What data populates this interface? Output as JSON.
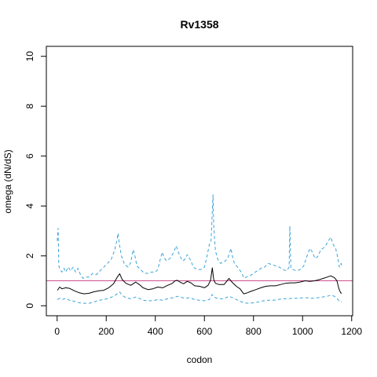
{
  "chart_data": {
    "type": "line",
    "title": "Rv1358",
    "xlabel": "codon",
    "ylabel": "omega (dN/dS)",
    "xlim": [
      -44,
      1204
    ],
    "ylim": [
      -0.4,
      10.4
    ],
    "x_ticks": [
      0,
      200,
      400,
      600,
      800,
      1000,
      1200
    ],
    "y_ticks": [
      0,
      2,
      4,
      6,
      8,
      10
    ],
    "reference_line": {
      "y": 1,
      "color": "#cc4f8f"
    },
    "grid": false,
    "legend": "none",
    "series": [
      {
        "role": "estimate",
        "style": "solid",
        "color": "#000000",
        "points": [
          [
            1,
            0.62
          ],
          [
            10,
            0.75
          ],
          [
            20,
            0.68
          ],
          [
            35,
            0.72
          ],
          [
            50,
            0.7
          ],
          [
            70,
            0.6
          ],
          [
            90,
            0.52
          ],
          [
            110,
            0.48
          ],
          [
            130,
            0.5
          ],
          [
            150,
            0.56
          ],
          [
            170,
            0.6
          ],
          [
            190,
            0.62
          ],
          [
            210,
            0.72
          ],
          [
            230,
            0.88
          ],
          [
            245,
            1.15
          ],
          [
            255,
            1.28
          ],
          [
            265,
            1.05
          ],
          [
            280,
            0.9
          ],
          [
            300,
            0.82
          ],
          [
            320,
            0.95
          ],
          [
            335,
            0.85
          ],
          [
            350,
            0.72
          ],
          [
            370,
            0.65
          ],
          [
            390,
            0.68
          ],
          [
            410,
            0.75
          ],
          [
            430,
            0.72
          ],
          [
            450,
            0.82
          ],
          [
            470,
            0.9
          ],
          [
            480,
            1.0
          ],
          [
            490,
            1.02
          ],
          [
            500,
            0.95
          ],
          [
            515,
            0.88
          ],
          [
            530,
            0.98
          ],
          [
            545,
            0.92
          ],
          [
            560,
            0.8
          ],
          [
            580,
            0.78
          ],
          [
            600,
            0.72
          ],
          [
            615,
            0.82
          ],
          [
            625,
            1.02
          ],
          [
            632,
            1.52
          ],
          [
            638,
            1.05
          ],
          [
            645,
            0.9
          ],
          [
            660,
            0.85
          ],
          [
            680,
            0.85
          ],
          [
            700,
            1.1
          ],
          [
            712,
            0.95
          ],
          [
            730,
            0.78
          ],
          [
            745,
            0.68
          ],
          [
            760,
            0.48
          ],
          [
            775,
            0.52
          ],
          [
            790,
            0.58
          ],
          [
            810,
            0.65
          ],
          [
            830,
            0.72
          ],
          [
            850,
            0.78
          ],
          [
            870,
            0.8
          ],
          [
            890,
            0.8
          ],
          [
            910,
            0.85
          ],
          [
            930,
            0.9
          ],
          [
            950,
            0.92
          ],
          [
            970,
            0.92
          ],
          [
            990,
            0.95
          ],
          [
            1010,
            1.0
          ],
          [
            1030,
            0.98
          ],
          [
            1050,
            1.0
          ],
          [
            1070,
            1.05
          ],
          [
            1085,
            1.1
          ],
          [
            1100,
            1.15
          ],
          [
            1115,
            1.2
          ],
          [
            1130,
            1.12
          ],
          [
            1140,
            1.0
          ],
          [
            1148,
            0.68
          ],
          [
            1155,
            0.52
          ],
          [
            1160,
            0.5
          ]
        ]
      },
      {
        "role": "upper-bound",
        "style": "dashed",
        "color": "#3ba3d8",
        "points": [
          [
            0,
            2.6
          ],
          [
            4,
            3.1
          ],
          [
            7,
            1.6
          ],
          [
            12,
            1.45
          ],
          [
            20,
            1.35
          ],
          [
            28,
            1.5
          ],
          [
            35,
            1.35
          ],
          [
            45,
            1.55
          ],
          [
            55,
            1.4
          ],
          [
            65,
            1.55
          ],
          [
            75,
            1.35
          ],
          [
            85,
            1.5
          ],
          [
            95,
            1.25
          ],
          [
            105,
            1.1
          ],
          [
            115,
            1.15
          ],
          [
            130,
            1.15
          ],
          [
            145,
            1.3
          ],
          [
            160,
            1.25
          ],
          [
            175,
            1.4
          ],
          [
            190,
            1.55
          ],
          [
            205,
            1.7
          ],
          [
            220,
            1.85
          ],
          [
            235,
            2.25
          ],
          [
            243,
            2.6
          ],
          [
            248,
            2.9
          ],
          [
            253,
            2.5
          ],
          [
            262,
            2.0
          ],
          [
            275,
            1.65
          ],
          [
            290,
            1.55
          ],
          [
            300,
            1.75
          ],
          [
            310,
            2.25
          ],
          [
            317,
            2.0
          ],
          [
            325,
            1.6
          ],
          [
            340,
            1.45
          ],
          [
            355,
            1.3
          ],
          [
            370,
            1.3
          ],
          [
            385,
            1.35
          ],
          [
            400,
            1.35
          ],
          [
            410,
            1.45
          ],
          [
            420,
            1.85
          ],
          [
            428,
            2.15
          ],
          [
            435,
            1.95
          ],
          [
            445,
            1.8
          ],
          [
            460,
            1.9
          ],
          [
            475,
            2.15
          ],
          [
            485,
            2.4
          ],
          [
            492,
            2.2
          ],
          [
            500,
            2.0
          ],
          [
            510,
            1.8
          ],
          [
            520,
            1.85
          ],
          [
            530,
            2.05
          ],
          [
            545,
            1.8
          ],
          [
            555,
            1.55
          ],
          [
            570,
            1.45
          ],
          [
            585,
            1.45
          ],
          [
            600,
            1.55
          ],
          [
            612,
            2.05
          ],
          [
            620,
            2.45
          ],
          [
            627,
            2.6
          ],
          [
            632,
            3.8
          ],
          [
            635,
            4.45
          ],
          [
            638,
            3.2
          ],
          [
            645,
            2.2
          ],
          [
            655,
            1.85
          ],
          [
            665,
            1.7
          ],
          [
            680,
            1.75
          ],
          [
            695,
            1.9
          ],
          [
            708,
            2.3
          ],
          [
            714,
            2.0
          ],
          [
            722,
            1.7
          ],
          [
            735,
            1.55
          ],
          [
            750,
            1.35
          ],
          [
            762,
            1.1
          ],
          [
            770,
            1.15
          ],
          [
            785,
            1.2
          ],
          [
            800,
            1.3
          ],
          [
            815,
            1.4
          ],
          [
            830,
            1.5
          ],
          [
            845,
            1.55
          ],
          [
            860,
            1.7
          ],
          [
            875,
            1.65
          ],
          [
            890,
            1.6
          ],
          [
            905,
            1.55
          ],
          [
            920,
            1.45
          ],
          [
            935,
            1.4
          ],
          [
            945,
            1.55
          ],
          [
            948,
            3.2
          ],
          [
            952,
            1.55
          ],
          [
            960,
            1.45
          ],
          [
            975,
            1.4
          ],
          [
            990,
            1.45
          ],
          [
            1005,
            1.6
          ],
          [
            1020,
            2.05
          ],
          [
            1030,
            2.3
          ],
          [
            1040,
            2.15
          ],
          [
            1050,
            1.9
          ],
          [
            1060,
            1.95
          ],
          [
            1075,
            2.25
          ],
          [
            1090,
            2.35
          ],
          [
            1105,
            2.6
          ],
          [
            1115,
            2.75
          ],
          [
            1125,
            2.45
          ],
          [
            1135,
            2.3
          ],
          [
            1143,
            1.95
          ],
          [
            1150,
            1.55
          ],
          [
            1157,
            1.7
          ],
          [
            1160,
            1.6
          ]
        ]
      },
      {
        "role": "lower-bound",
        "style": "dashed",
        "color": "#3ba3d8",
        "points": [
          [
            1,
            0.25
          ],
          [
            10,
            0.3
          ],
          [
            20,
            0.25
          ],
          [
            35,
            0.3
          ],
          [
            50,
            0.22
          ],
          [
            70,
            0.18
          ],
          [
            90,
            0.12
          ],
          [
            110,
            0.1
          ],
          [
            130,
            0.1
          ],
          [
            150,
            0.15
          ],
          [
            170,
            0.22
          ],
          [
            190,
            0.25
          ],
          [
            210,
            0.3
          ],
          [
            230,
            0.38
          ],
          [
            245,
            0.48
          ],
          [
            255,
            0.55
          ],
          [
            265,
            0.42
          ],
          [
            280,
            0.32
          ],
          [
            300,
            0.28
          ],
          [
            320,
            0.35
          ],
          [
            335,
            0.3
          ],
          [
            350,
            0.22
          ],
          [
            370,
            0.2
          ],
          [
            390,
            0.2
          ],
          [
            410,
            0.25
          ],
          [
            430,
            0.22
          ],
          [
            450,
            0.28
          ],
          [
            470,
            0.32
          ],
          [
            490,
            0.38
          ],
          [
            500,
            0.35
          ],
          [
            520,
            0.3
          ],
          [
            540,
            0.32
          ],
          [
            560,
            0.25
          ],
          [
            580,
            0.22
          ],
          [
            600,
            0.2
          ],
          [
            620,
            0.25
          ],
          [
            632,
            0.45
          ],
          [
            645,
            0.32
          ],
          [
            660,
            0.28
          ],
          [
            680,
            0.28
          ],
          [
            700,
            0.38
          ],
          [
            720,
            0.3
          ],
          [
            740,
            0.2
          ],
          [
            760,
            0.12
          ],
          [
            780,
            0.1
          ],
          [
            800,
            0.12
          ],
          [
            820,
            0.15
          ],
          [
            840,
            0.2
          ],
          [
            860,
            0.22
          ],
          [
            880,
            0.22
          ],
          [
            900,
            0.25
          ],
          [
            920,
            0.28
          ],
          [
            940,
            0.28
          ],
          [
            960,
            0.3
          ],
          [
            980,
            0.3
          ],
          [
            1000,
            0.32
          ],
          [
            1020,
            0.32
          ],
          [
            1040,
            0.3
          ],
          [
            1060,
            0.32
          ],
          [
            1080,
            0.35
          ],
          [
            1100,
            0.38
          ],
          [
            1115,
            0.42
          ],
          [
            1130,
            0.38
          ],
          [
            1140,
            0.3
          ],
          [
            1150,
            0.18
          ],
          [
            1160,
            0.15
          ]
        ]
      }
    ]
  }
}
